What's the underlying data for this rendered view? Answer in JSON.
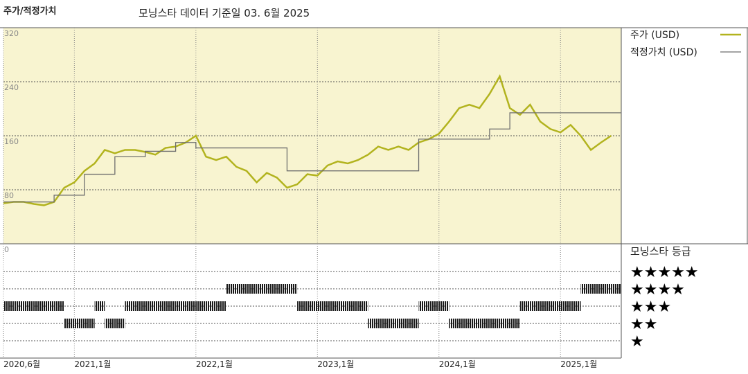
{
  "chart_data": [
    {
      "type": "line",
      "title": "주가/적정가치",
      "subtitle": "모닝스타 데이터 기준일 03. 6월 2025",
      "x": [
        "2020-06",
        "2020-07",
        "2020-08",
        "2020-09",
        "2020-10",
        "2020-11",
        "2020-12",
        "2021-01",
        "2021-02",
        "2021-03",
        "2021-04",
        "2021-05",
        "2021-06",
        "2021-07",
        "2021-08",
        "2021-09",
        "2021-10",
        "2021-11",
        "2021-12",
        "2022-01",
        "2022-02",
        "2022-03",
        "2022-04",
        "2022-05",
        "2022-06",
        "2022-07",
        "2022-08",
        "2022-09",
        "2022-10",
        "2022-11",
        "2022-12",
        "2023-01",
        "2023-02",
        "2023-03",
        "2023-04",
        "2023-05",
        "2023-06",
        "2023-07",
        "2023-08",
        "2023-09",
        "2023-10",
        "2023-11",
        "2023-12",
        "2024-01",
        "2024-02",
        "2024-03",
        "2024-04",
        "2024-05",
        "2024-06",
        "2024-07",
        "2024-08",
        "2024-09",
        "2024-10",
        "2024-11",
        "2024-12",
        "2025-01",
        "2025-02",
        "2025-03",
        "2025-04",
        "2025-05",
        "2025-06"
      ],
      "series": [
        {
          "name": "주가 (USD)",
          "color": "#b2b31e",
          "values": [
            60,
            62,
            62,
            59,
            57,
            62,
            83,
            91,
            108,
            119,
            139,
            134,
            139,
            139,
            136,
            132,
            142,
            144,
            150,
            160,
            129,
            124,
            129,
            114,
            108,
            91,
            105,
            98,
            83,
            88,
            103,
            101,
            116,
            122,
            119,
            124,
            132,
            144,
            139,
            144,
            139,
            150,
            155,
            163,
            181,
            201,
            206,
            201,
            222,
            248,
            201,
            191,
            206,
            181,
            170,
            165,
            176,
            160,
            139,
            150,
            160
          ]
        },
        {
          "name": "적정가치 (USD)",
          "color": "#6e6e6e",
          "step": true,
          "values": [
            62,
            62,
            62,
            62,
            62,
            62,
            72,
            72,
            72,
            103,
            103,
            103,
            129,
            129,
            129,
            137,
            137,
            137,
            150,
            150,
            142,
            142,
            142,
            142,
            142,
            142,
            142,
            142,
            142,
            108,
            108,
            108,
            108,
            108,
            108,
            108,
            108,
            108,
            108,
            108,
            108,
            108,
            155,
            155,
            155,
            155,
            155,
            155,
            155,
            170,
            170,
            194,
            194,
            194,
            194,
            194,
            194,
            194,
            194,
            194,
            194
          ]
        }
      ],
      "xlim": [
        "2020-06",
        "2025-07"
      ],
      "xticks": [
        {
          "value": "2020-06",
          "label": "2020,6월"
        },
        {
          "value": "2021-01",
          "label": "2021,1월"
        },
        {
          "value": "2022-01",
          "label": "2022,1월"
        },
        {
          "value": "2023-01",
          "label": "2023,1월"
        },
        {
          "value": "2024-01",
          "label": "2024,1월"
        },
        {
          "value": "2025-01",
          "label": "2025,1월"
        }
      ],
      "ylim": [
        0,
        320
      ],
      "yticks": [
        0,
        80,
        160,
        240,
        320
      ],
      "grid": true,
      "background": "#f8f4d0",
      "legend": "right"
    },
    {
      "type": "rating",
      "title": "모닝스타 등급",
      "color": "#1a1a1a",
      "values": [
        3,
        3,
        3,
        3,
        3,
        3,
        2,
        2,
        2,
        3,
        2,
        2,
        3,
        3,
        3,
        3,
        3,
        3,
        3,
        3,
        3,
        3,
        4,
        4,
        4,
        4,
        4,
        4,
        4,
        3,
        3,
        3,
        3,
        3,
        3,
        3,
        2,
        2,
        2,
        2,
        2,
        3,
        3,
        3,
        2,
        2,
        2,
        2,
        2,
        2,
        2,
        3,
        3,
        3,
        3,
        3,
        3,
        4,
        4,
        4,
        4
      ],
      "ylim": [
        0,
        6
      ],
      "yticks": [
        {
          "value": 5,
          "label": "★★★★★"
        },
        {
          "value": 4,
          "label": "★★★★"
        },
        {
          "value": 3,
          "label": "★★★"
        },
        {
          "value": 2,
          "label": "★★"
        },
        {
          "value": 1,
          "label": "★"
        }
      ]
    }
  ]
}
